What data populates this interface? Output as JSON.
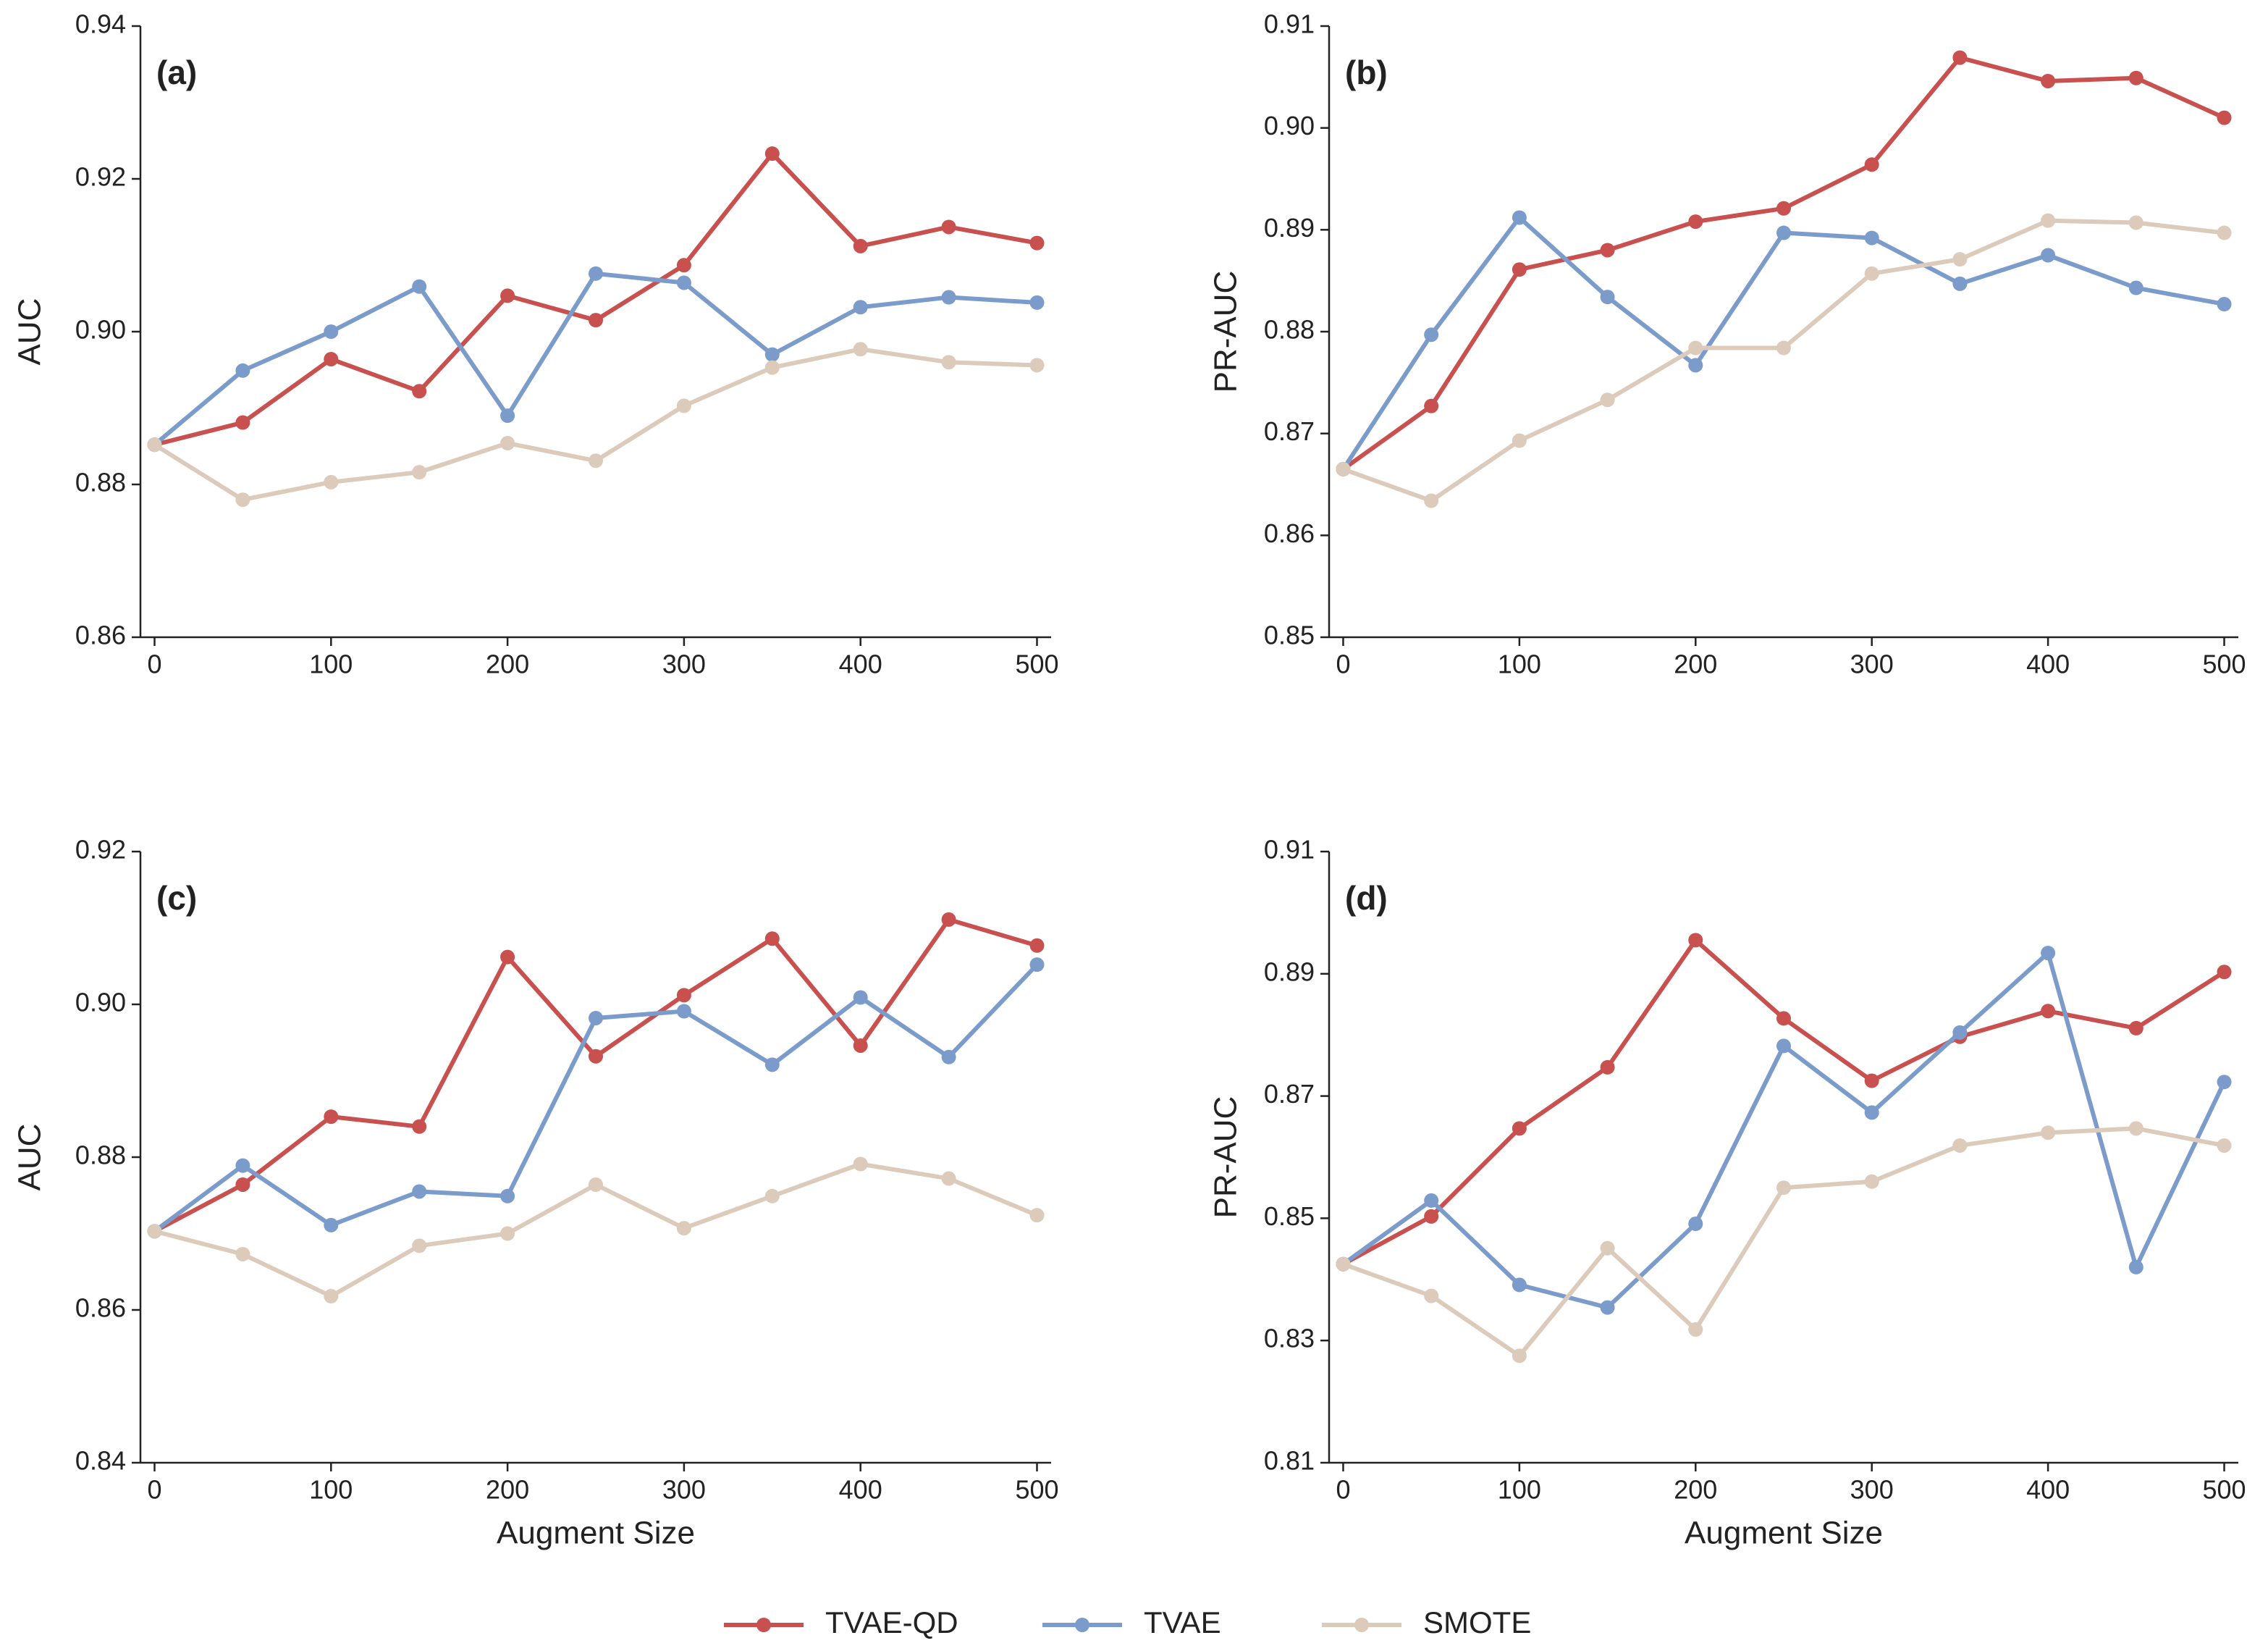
{
  "chart_data": [
    {
      "type": "line",
      "label": "(a)",
      "ylabel": "AUC",
      "x": [
        0,
        50,
        100,
        150,
        200,
        250,
        300,
        350,
        400,
        450,
        500
      ],
      "xlim": [
        -8,
        508
      ],
      "xticks": [
        0,
        100,
        200,
        300,
        400,
        500
      ],
      "ylim": [
        0.86,
        0.94
      ],
      "yticks": [
        0.86,
        0.88,
        {
          "value": 0.9,
          "label": "0.90"
        },
        0.92,
        0.94
      ],
      "series": [
        {
          "name": "TVAE-QD",
          "color": "#c8504f",
          "values": [
            0.8852,
            0.8881,
            0.8964,
            0.8922,
            0.9047,
            0.9015,
            0.9087,
            0.9233,
            0.9112,
            0.9137,
            0.9116
          ]
        },
        {
          "name": "TVAE",
          "color": "#7b9ccb",
          "values": [
            0.8852,
            0.8949,
            0.9,
            0.9059,
            0.889,
            0.9076,
            0.9064,
            0.897,
            0.9032,
            0.9045,
            0.9038
          ]
        },
        {
          "name": "SMOTE",
          "color": "#dccbbb",
          "values": [
            0.8852,
            0.878,
            0.8803,
            0.8816,
            0.8854,
            0.8831,
            0.8903,
            0.8953,
            0.8977,
            0.896,
            0.8956
          ]
        }
      ]
    },
    {
      "type": "line",
      "label": "(b)",
      "ylabel": "PR-AUC",
      "x": [
        0,
        50,
        100,
        150,
        200,
        250,
        300,
        350,
        400,
        450,
        500
      ],
      "xlim": [
        -8,
        508
      ],
      "xticks": [
        0,
        100,
        200,
        300,
        400,
        500
      ],
      "ylim": [
        0.85,
        0.91
      ],
      "yticks": [
        0.85,
        0.86,
        0.87,
        0.88,
        0.89,
        {
          "value": 0.9,
          "label": "0.90"
        },
        0.91
      ],
      "series": [
        {
          "color": "#c8504f",
          "values": [
            0.8665,
            0.8727,
            0.8861,
            0.888,
            0.8908,
            0.8921,
            0.8964,
            0.9069,
            0.9046,
            0.9049,
            0.901
          ]
        },
        {
          "color": "#7b9ccb",
          "values": [
            0.8665,
            0.8797,
            0.8912,
            0.8834,
            0.8767,
            0.8897,
            0.8892,
            0.8847,
            0.8875,
            0.8843,
            0.8827
          ]
        },
        {
          "color": "#dccbbb",
          "values": [
            0.8665,
            0.8634,
            0.8693,
            0.8733,
            0.8784,
            0.8784,
            0.8857,
            0.8871,
            0.8909,
            0.8907,
            0.8897
          ]
        }
      ]
    },
    {
      "type": "line",
      "label": "(c)",
      "ylabel": "AUC",
      "xlabel": "Augment Size",
      "x": [
        0,
        50,
        100,
        150,
        200,
        250,
        300,
        350,
        400,
        450,
        500
      ],
      "xlim": [
        -8,
        508
      ],
      "xticks": [
        0,
        100,
        200,
        300,
        400,
        500
      ],
      "ylim": [
        0.84,
        0.92
      ],
      "yticks": [
        0.84,
        0.86,
        0.88,
        {
          "value": 0.9,
          "label": "0.90"
        },
        0.92
      ],
      "series": [
        {
          "color": "#c8504f",
          "values": [
            0.8703,
            0.8764,
            0.8853,
            0.884,
            0.9062,
            0.8932,
            0.9012,
            0.9086,
            0.8946,
            0.9111,
            0.9077
          ]
        },
        {
          "color": "#7b9ccb",
          "values": [
            0.8703,
            0.8789,
            0.8711,
            0.8755,
            0.8749,
            0.8982,
            0.8991,
            0.8921,
            0.9009,
            0.8931,
            0.9052
          ]
        },
        {
          "color": "#dccbbb",
          "values": [
            0.8703,
            0.8673,
            0.8618,
            0.8684,
            0.87,
            0.8764,
            0.8707,
            0.8749,
            0.8791,
            0.8772,
            0.8724
          ]
        }
      ]
    },
    {
      "type": "line",
      "label": "(d)",
      "ylabel": "PR-AUC",
      "xlabel": "Augment Size",
      "x": [
        0,
        50,
        100,
        150,
        200,
        250,
        300,
        350,
        400,
        450,
        500
      ],
      "xlim": [
        -8,
        508
      ],
      "xticks": [
        0,
        100,
        200,
        300,
        400,
        500
      ],
      "ylim": [
        0.81,
        0.91
      ],
      "yticks": [
        0.81,
        0.83,
        0.85,
        0.87,
        0.89,
        0.91
      ],
      "series": [
        {
          "color": "#c8504f",
          "values": [
            0.8425,
            0.8503,
            0.8647,
            0.8747,
            0.8955,
            0.8827,
            0.8725,
            0.8797,
            0.8839,
            0.8811,
            0.8903
          ]
        },
        {
          "color": "#7b9ccb",
          "values": [
            0.8425,
            0.8529,
            0.8391,
            0.8354,
            0.8491,
            0.8782,
            0.8673,
            0.8804,
            0.8934,
            0.842,
            0.8723
          ]
        },
        {
          "color": "#dccbbb",
          "values": [
            0.8425,
            0.8373,
            0.8275,
            0.8451,
            0.8318,
            0.855,
            0.856,
            0.8619,
            0.864,
            0.8647,
            0.8619
          ]
        }
      ]
    }
  ]
}
